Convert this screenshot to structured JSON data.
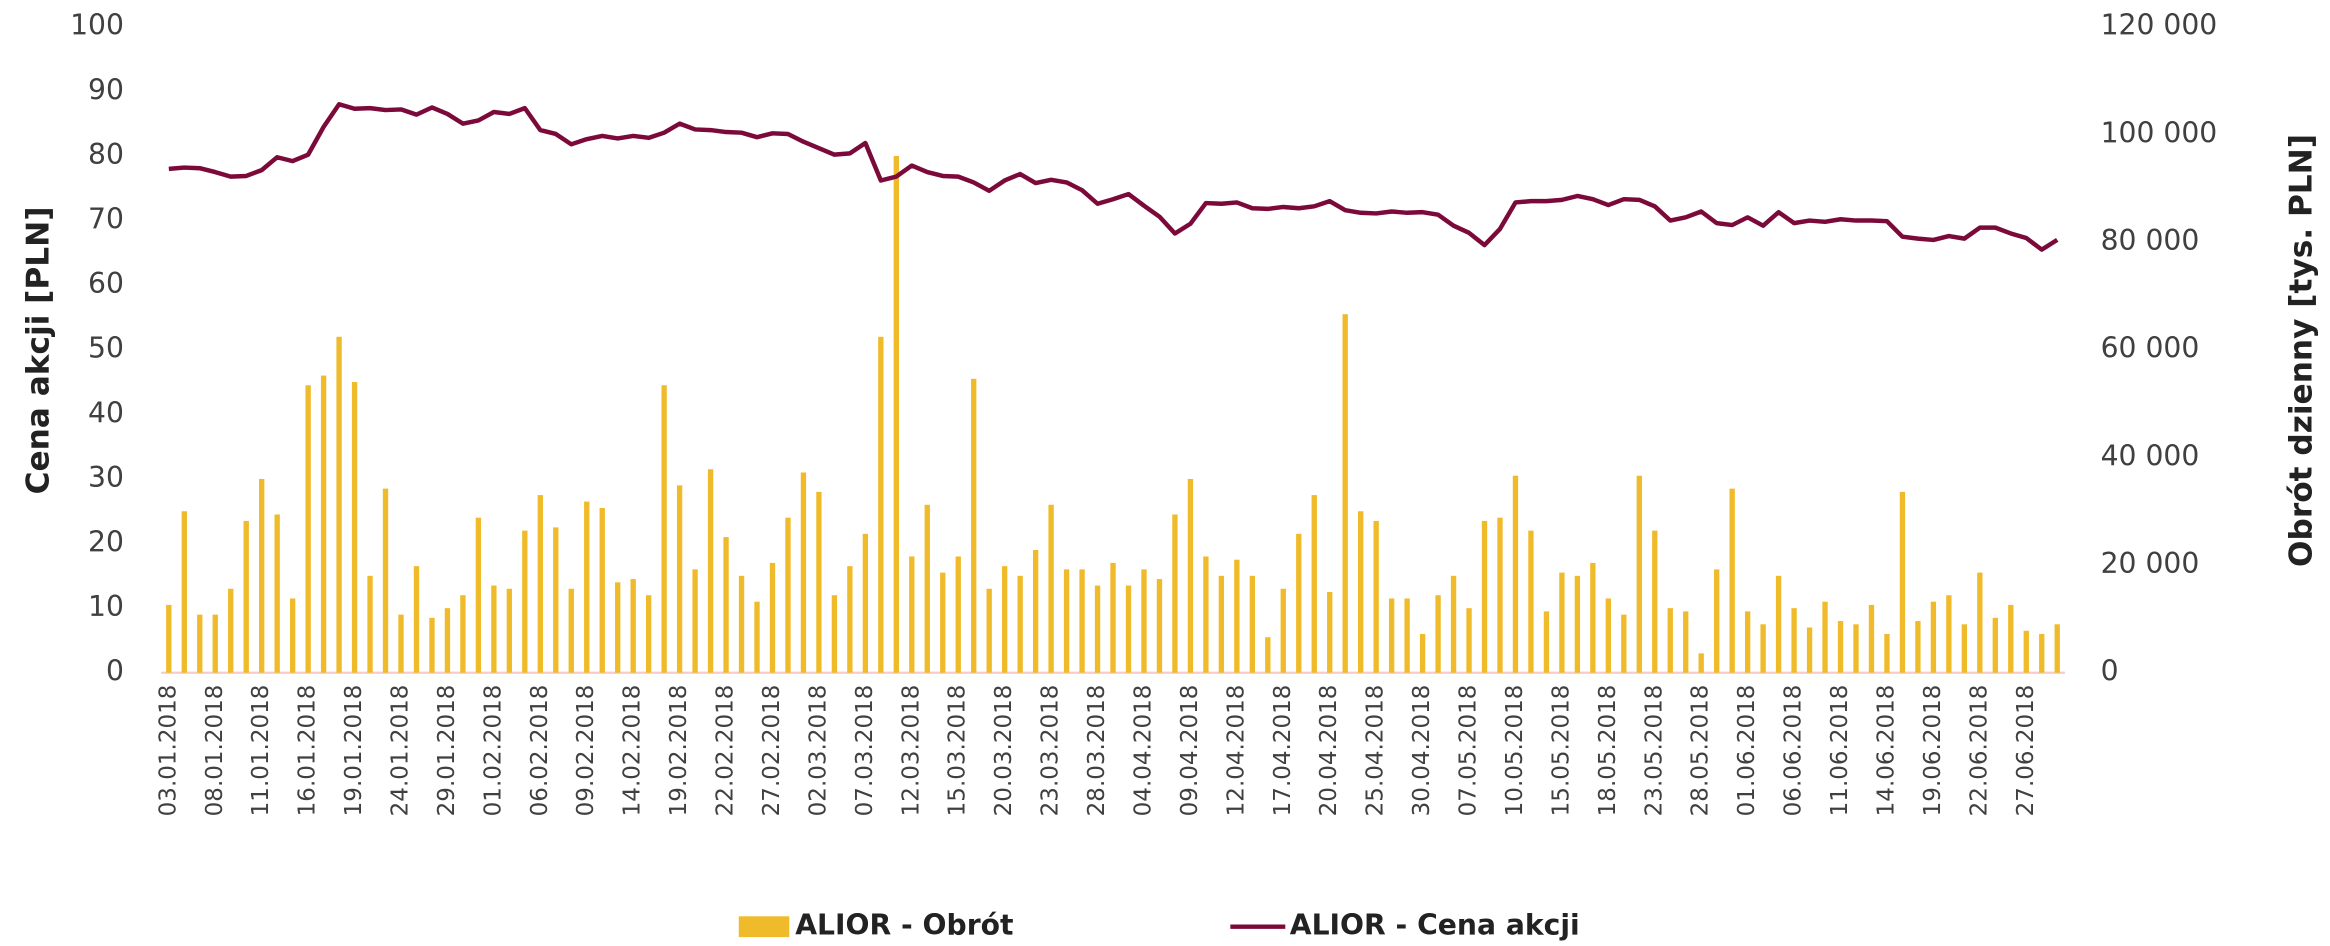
{
  "chart_data": {
    "type": "combo",
    "ylabel": "Cena akcji [PLN]",
    "y2label": "Obrót dzienny [tys. PLN]",
    "ylim": [
      0,
      100
    ],
    "yticks": [
      0,
      10,
      20,
      30,
      40,
      50,
      60,
      70,
      80,
      90,
      100
    ],
    "y2lim": [
      0,
      120000
    ],
    "y2ticks": [
      0,
      {
        "value": 20000,
        "label": "20 000"
      },
      {
        "value": 40000,
        "label": "40 000"
      },
      {
        "value": 60000,
        "label": "60 000"
      },
      {
        "value": 80000,
        "label": "80 000"
      },
      {
        "value": 100000,
        "label": "100 000"
      },
      {
        "value": 120000,
        "label": "120 000"
      }
    ],
    "grid": false,
    "legend": "bottom",
    "categories": [
      "03.01.2018",
      null,
      null,
      "08.01.2018",
      null,
      null,
      "11.01.2018",
      null,
      null,
      "16.01.2018",
      null,
      null,
      "19.01.2018",
      null,
      null,
      "24.01.2018",
      null,
      null,
      "29.01.2018",
      null,
      null,
      "01.02.2018",
      null,
      null,
      "06.02.2018",
      null,
      null,
      "09.02.2018",
      null,
      null,
      "14.02.2018",
      null,
      null,
      "19.02.2018",
      null,
      null,
      "22.02.2018",
      null,
      null,
      "27.02.2018",
      null,
      null,
      "02.03.2018",
      null,
      null,
      "07.03.2018",
      null,
      null,
      "12.03.2018",
      null,
      null,
      "15.03.2018",
      null,
      null,
      "20.03.2018",
      null,
      null,
      "23.03.2018",
      null,
      null,
      "28.03.2018",
      null,
      null,
      "04.04.2018",
      null,
      null,
      "09.04.2018",
      null,
      null,
      "12.04.2018",
      null,
      null,
      "17.04.2018",
      null,
      null,
      "20.04.2018",
      null,
      null,
      "25.04.2018",
      null,
      null,
      "30.04.2018",
      null,
      null,
      "07.05.2018",
      null,
      null,
      "10.05.2018",
      null,
      null,
      "15.05.2018",
      null,
      null,
      "18.05.2018",
      null,
      null,
      "23.05.2018",
      null,
      null,
      "28.05.2018",
      null,
      null,
      "01.06.2018",
      null,
      null,
      "06.06.2018",
      null,
      null,
      "11.06.2018",
      null,
      null,
      "14.06.2018",
      null,
      null,
      "19.06.2018",
      null,
      null,
      "22.06.2018",
      null,
      null,
      "27.06.2018",
      null,
      null
    ],
    "series": [
      {
        "name": "ALIOR - Obrót",
        "type": "bar",
        "axis": "y2",
        "color": "#f0bb2a",
        "values": [
          12600,
          30000,
          10800,
          10800,
          15600,
          28200,
          36000,
          29400,
          13800,
          53400,
          55200,
          62400,
          54000,
          18000,
          34200,
          10800,
          19800,
          10200,
          12000,
          14400,
          28800,
          16200,
          15600,
          26400,
          33000,
          27000,
          15600,
          31800,
          30600,
          16800,
          17400,
          14400,
          53400,
          34800,
          19200,
          37800,
          25200,
          18000,
          13200,
          20400,
          28800,
          37200,
          33600,
          14400,
          19800,
          25800,
          62400,
          96000,
          21600,
          31200,
          18600,
          21600,
          54600,
          15600,
          19800,
          18000,
          22800,
          31200,
          19200,
          19200,
          16200,
          20400,
          16200,
          19200,
          17400,
          29400,
          36000,
          21600,
          18000,
          21000,
          18000,
          6600,
          15600,
          25800,
          33000,
          15000,
          66600,
          30000,
          28200,
          13800,
          13800,
          7200,
          14400,
          18000,
          12000,
          28200,
          28800,
          36600,
          26400,
          11400,
          18600,
          18000,
          20400,
          13800,
          10800,
          36600,
          26400,
          12000,
          11400,
          3600,
          19200,
          34200,
          11400,
          9000,
          18000,
          12000,
          8400,
          13200,
          9600,
          9000,
          12600,
          7200,
          33600,
          9600,
          13200,
          14400,
          9000,
          18600,
          10200,
          12600,
          7800,
          7200,
          9000
        ]
      },
      {
        "name": "ALIOR - Cena akcji",
        "type": "line",
        "axis": "y",
        "color": "#7b0a3a",
        "values": [
          78,
          78.2,
          78.1,
          77.5,
          76.8,
          76.9,
          77.8,
          79.8,
          79.2,
          80.2,
          84.5,
          88,
          87.3,
          87.4,
          87.1,
          87.2,
          86.4,
          87.5,
          86.5,
          85,
          85.5,
          86.8,
          86.5,
          87.4,
          84,
          83.4,
          81.8,
          82.6,
          83.1,
          82.7,
          83.1,
          82.8,
          83.6,
          85,
          84.1,
          84,
          83.7,
          83.6,
          82.9,
          83.5,
          83.4,
          82.2,
          81.2,
          80.2,
          80.4,
          82,
          76.2,
          76.8,
          78.5,
          77.5,
          76.9,
          76.8,
          75.9,
          74.6,
          76.2,
          77.2,
          75.8,
          76.3,
          75.9,
          74.7,
          72.6,
          73.3,
          74.1,
          72.3,
          70.6,
          68,
          69.5,
          72.7,
          72.6,
          72.8,
          71.9,
          71.8,
          72.1,
          71.9,
          72.2,
          73,
          71.6,
          71.2,
          71.1,
          71.4,
          71.2,
          71.3,
          70.9,
          69.2,
          68.1,
          66.2,
          68.7,
          72.8,
          73,
          73,
          73.2,
          73.8,
          73.3,
          72.4,
          73.3,
          73.2,
          72.2,
          70,
          70.5,
          71.4,
          69.6,
          69.3,
          70.5,
          69.2,
          71.3,
          69.6,
          70,
          69.8,
          70.2,
          70,
          70,
          69.9,
          67.5,
          67.2,
          67,
          67.6,
          67.2,
          68.9,
          68.9,
          68,
          67.3,
          65.5,
          67
        ]
      }
    ]
  }
}
